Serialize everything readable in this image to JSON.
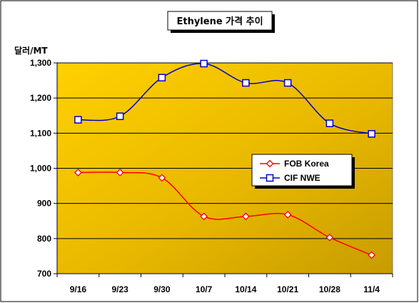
{
  "chart_data": {
    "type": "line",
    "title": "Ethylene 가격 추이",
    "ylabel": "달러/MT",
    "xlabel": "",
    "categories": [
      "9/16",
      "9/23",
      "9/30",
      "10/7",
      "10/14",
      "10/21",
      "10/28",
      "11/4"
    ],
    "ylim": [
      700,
      1300
    ],
    "yticks": [
      700,
      800,
      900,
      1000,
      1100,
      1200,
      1300
    ],
    "ytick_labels": [
      "700",
      "800",
      "900",
      "1,000",
      "1,100",
      "1,200",
      "1,300"
    ],
    "grid": true,
    "legend_position": "center-right",
    "series": [
      {
        "name": "FOB Korea",
        "color": "#ff0000",
        "marker": "diamond",
        "values": [
          988,
          988,
          973,
          863,
          863,
          868,
          803,
          753
        ]
      },
      {
        "name": "CIF NWE",
        "color": "#0000cc",
        "marker": "square",
        "values": [
          1138,
          1148,
          1258,
          1298,
          1243,
          1243,
          1128,
          1098
        ]
      }
    ],
    "colors": {
      "plot_background": "#f2c200",
      "border": "#000000"
    }
  }
}
